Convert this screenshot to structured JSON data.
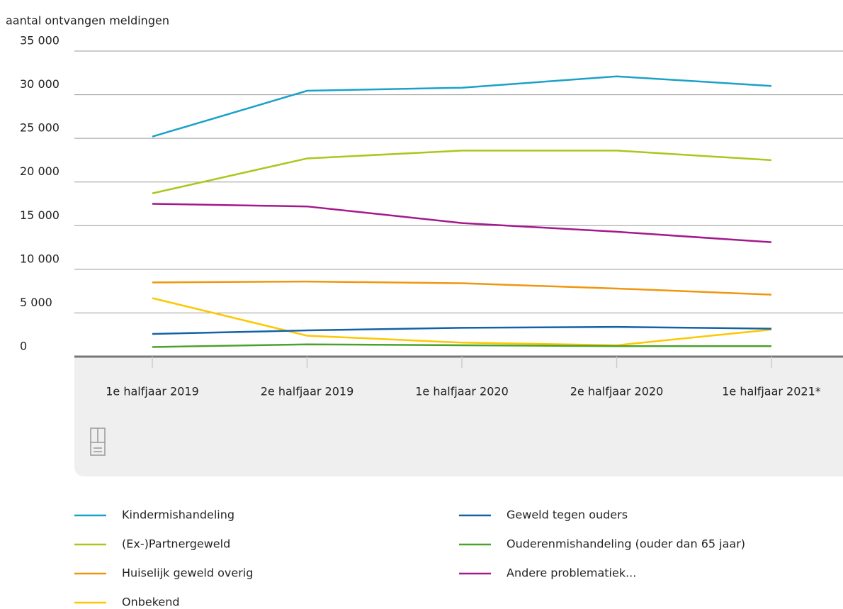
{
  "chart_data": {
    "type": "line",
    "title": "aantal ontvangen meldingen",
    "categories": [
      "1e halfjaar 2019",
      "2e halfjaar 2019",
      "1e halfjaar 2020",
      "2e halfjaar 2020",
      "1e halfjaar 2021*"
    ],
    "ylim": [
      0,
      35000
    ],
    "yticks": [
      0,
      {
        "value": 5000,
        "label": "5 000"
      },
      {
        "value": 10000,
        "label": "10 000"
      },
      {
        "value": 15000,
        "label": "15 000"
      },
      {
        "value": 20000,
        "label": "20 000"
      },
      {
        "value": 25000,
        "label": "25 000"
      },
      {
        "value": 30000,
        "label": "30 000"
      },
      {
        "value": 35000,
        "label": "35 000"
      }
    ],
    "grid": true,
    "series": [
      {
        "name": "Kindermishandeling",
        "color": "#1ba1c9",
        "values": [
          25200,
          30450,
          30800,
          32100,
          31000
        ]
      },
      {
        "name": "(Ex-)Partnergeweld",
        "color": "#a8c81c",
        "values": [
          18700,
          22700,
          23600,
          23600,
          22500
        ]
      },
      {
        "name": "Huiselijk geweld overig",
        "color": "#f0960e",
        "values": [
          8500,
          8600,
          8400,
          7800,
          7100
        ]
      },
      {
        "name": "Onbekend",
        "color": "#fcc800",
        "values": [
          6700,
          2400,
          1600,
          1300,
          3100
        ]
      },
      {
        "name": "Geweld tegen ouders",
        "color": "#1262a8",
        "values": [
          2600,
          3000,
          3300,
          3400,
          3200
        ]
      },
      {
        "name": "Ouderenmishandeling (ouder dan 65 jaar)",
        "color": "#4aa22c",
        "values": [
          1100,
          1400,
          1300,
          1200,
          1200
        ]
      },
      {
        "name": "Andere problematiek...",
        "color": "#a3198b",
        "values": [
          17500,
          17200,
          15300,
          14300,
          13100
        ]
      }
    ]
  }
}
